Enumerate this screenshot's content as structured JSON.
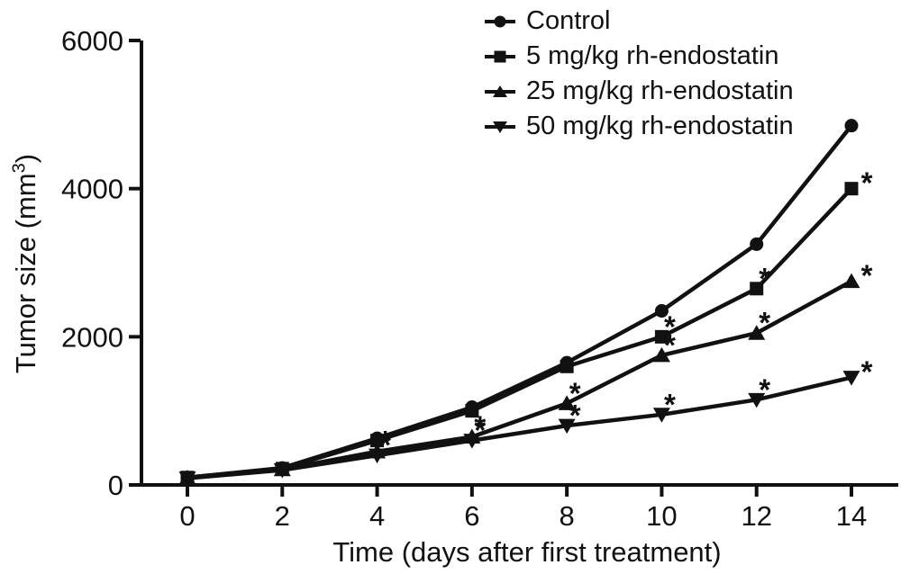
{
  "figure": {
    "background": "#ffffff",
    "ink": "#111111"
  },
  "chart_data": {
    "type": "line",
    "xlabel": "Time (days after first treatment)",
    "ylabel": "Tumor size (mm³)",
    "ylabel_parts": {
      "main": "Tumor size (mm",
      "sup": "3",
      "end": ")"
    },
    "x": [
      0,
      2,
      4,
      6,
      8,
      10,
      12,
      14
    ],
    "xticks": [
      0,
      2,
      4,
      6,
      8,
      10,
      12,
      14
    ],
    "yticks": [
      0,
      2000,
      4000,
      6000
    ],
    "xlim": [
      0,
      15
    ],
    "ylim": [
      0,
      6000
    ],
    "grid": false,
    "legend_position": "top-right",
    "significance_symbol": "*",
    "series": [
      {
        "name": "Control",
        "marker": "circle",
        "values": [
          100,
          230,
          630,
          1050,
          1650,
          2350,
          3250,
          4850
        ],
        "significant_at_x": []
      },
      {
        "name": "5 mg/kg rh-endostatin",
        "marker": "square",
        "values": [
          100,
          220,
          600,
          1000,
          1600,
          2000,
          2650,
          4000
        ],
        "significant_at_x": [
          10,
          12,
          14
        ]
      },
      {
        "name": "25 mg/kg rh-endostatin",
        "marker": "triangle-up",
        "values": [
          95,
          210,
          450,
          650,
          1100,
          1750,
          2050,
          2750
        ],
        "significant_at_x": [
          4,
          6,
          8,
          10,
          12,
          14
        ]
      },
      {
        "name": "50 mg/kg rh-endostatin",
        "marker": "triangle-down",
        "values": [
          90,
          200,
          400,
          600,
          800,
          950,
          1150,
          1450
        ],
        "significant_at_x": [
          4,
          6,
          8,
          10,
          12,
          14
        ]
      }
    ]
  }
}
